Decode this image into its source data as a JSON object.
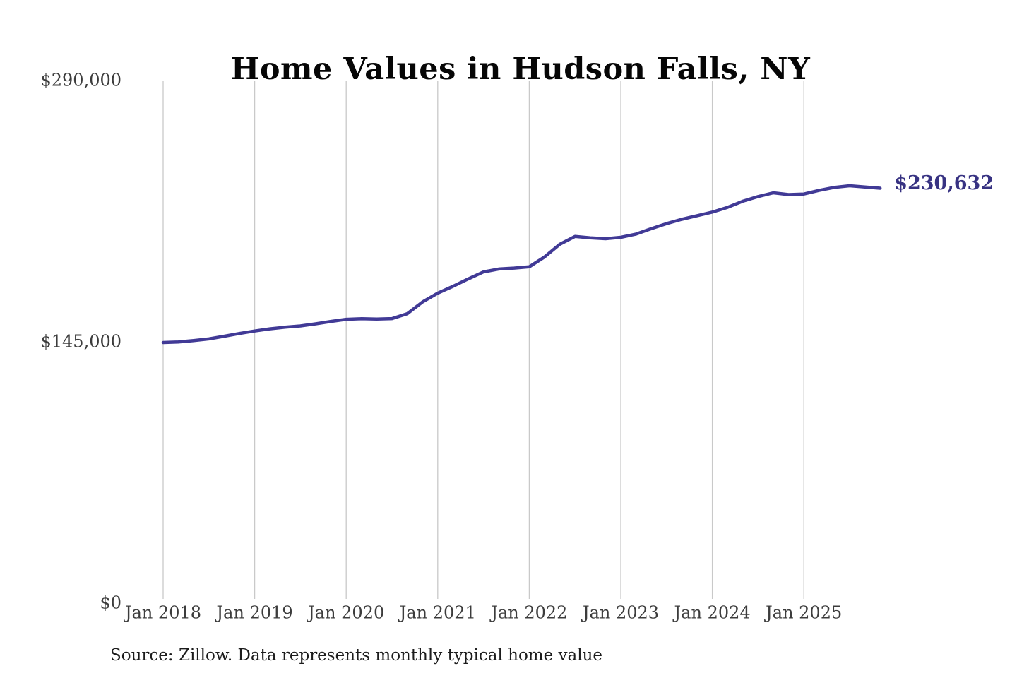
{
  "chart_data": {
    "type": "line",
    "title": "Home Values in Hudson Falls, NY",
    "source_note": "Source: Zillow. Data represents monthly typical home value",
    "xlabel": "",
    "ylabel": "",
    "ylim": [
      0,
      290000
    ],
    "grid": "vertical-only",
    "legend": "none",
    "colors": {
      "line": "#413a96",
      "end_label": "#373282",
      "gridline": "#c9c9c9",
      "tick_text": "#3c3c3c"
    },
    "y_ticks": [
      {
        "label": "$0",
        "value": 0
      },
      {
        "label": "$145,000",
        "value": 145000
      },
      {
        "label": "$290,000",
        "value": 290000
      }
    ],
    "x_ticks": [
      {
        "label": "Jan 2018",
        "month": 0
      },
      {
        "label": "Jan 2019",
        "month": 12
      },
      {
        "label": "Jan 2020",
        "month": 24
      },
      {
        "label": "Jan 2021",
        "month": 36
      },
      {
        "label": "Jan 2022",
        "month": 48
      },
      {
        "label": "Jan 2023",
        "month": 60
      },
      {
        "label": "Jan 2024",
        "month": 72
      },
      {
        "label": "Jan 2025",
        "month": 84
      }
    ],
    "series": [
      {
        "name": "Monthly typical home value",
        "x_unit": "months since Jan 2018",
        "points": [
          [
            0,
            145000
          ],
          [
            2,
            145300
          ],
          [
            4,
            146100
          ],
          [
            6,
            147000
          ],
          [
            8,
            148500
          ],
          [
            10,
            150000
          ],
          [
            12,
            151400
          ],
          [
            14,
            152600
          ],
          [
            16,
            153500
          ],
          [
            18,
            154200
          ],
          [
            20,
            155400
          ],
          [
            22,
            156700
          ],
          [
            24,
            157900
          ],
          [
            26,
            158200
          ],
          [
            28,
            158000
          ],
          [
            30,
            158300
          ],
          [
            32,
            161000
          ],
          [
            34,
            167500
          ],
          [
            36,
            172400
          ],
          [
            38,
            176200
          ],
          [
            40,
            180300
          ],
          [
            42,
            184200
          ],
          [
            44,
            185800
          ],
          [
            46,
            186300
          ],
          [
            48,
            187000
          ],
          [
            50,
            192500
          ],
          [
            52,
            199500
          ],
          [
            54,
            203900
          ],
          [
            56,
            203100
          ],
          [
            58,
            202600
          ],
          [
            60,
            203400
          ],
          [
            62,
            205200
          ],
          [
            64,
            208200
          ],
          [
            66,
            211000
          ],
          [
            68,
            213400
          ],
          [
            70,
            215400
          ],
          [
            72,
            217400
          ],
          [
            74,
            220000
          ],
          [
            76,
            223400
          ],
          [
            78,
            226000
          ],
          [
            80,
            228100
          ],
          [
            82,
            227100
          ],
          [
            84,
            227400
          ],
          [
            86,
            229400
          ],
          [
            88,
            231100
          ],
          [
            90,
            232000
          ],
          [
            92,
            231300
          ],
          [
            94,
            230632
          ]
        ]
      }
    ],
    "end_label": {
      "text": "$230,632",
      "value": 230632
    }
  }
}
